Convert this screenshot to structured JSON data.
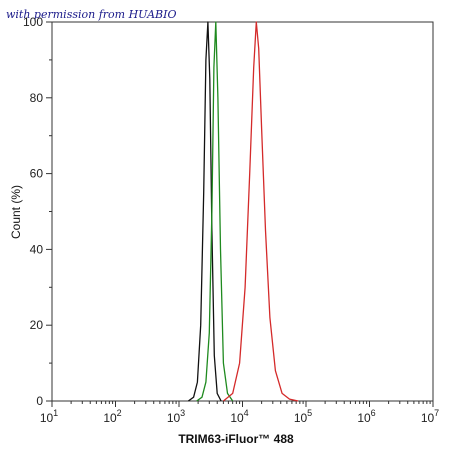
{
  "watermark": "with permission from HUABIO",
  "chart_data": {
    "type": "line",
    "xlabel": "TRIM63-iFluor™ 488",
    "ylabel": "Count  (%)",
    "x_scale": "log",
    "xlim": [
      10,
      10000000
    ],
    "ylim": [
      0,
      100
    ],
    "x_ticks": [
      {
        "value": 10,
        "base": "10",
        "exp": "1"
      },
      {
        "value": 100,
        "base": "10",
        "exp": "2"
      },
      {
        "value": 1000,
        "base": "10",
        "exp": "3"
      },
      {
        "value": 10000,
        "base": "10",
        "exp": "4"
      },
      {
        "value": 100000,
        "base": "10",
        "exp": "5"
      },
      {
        "value": 1000000,
        "base": "10",
        "exp": "6"
      },
      {
        "value": 10000000,
        "base": "10",
        "exp": "7"
      }
    ],
    "y_ticks": [
      0,
      20,
      40,
      60,
      80,
      100
    ],
    "y_tick_labels": [
      "0",
      "20",
      "40",
      "60",
      "80",
      "100"
    ],
    "grid": false,
    "series": [
      {
        "color": "#111111",
        "x": [
          1400,
          1700,
          1950,
          2200,
          2450,
          2650,
          2850,
          3050,
          3300,
          3600,
          4000,
          4600
        ],
        "y": [
          0,
          1,
          5,
          20,
          55,
          90,
          100,
          85,
          45,
          12,
          2,
          0
        ]
      },
      {
        "color": "#1f8a1f",
        "x": [
          1900,
          2300,
          2650,
          3000,
          3300,
          3550,
          3800,
          4100,
          4500,
          5000,
          5800,
          7000
        ],
        "y": [
          0,
          1,
          5,
          18,
          50,
          88,
          100,
          80,
          40,
          10,
          2,
          0
        ]
      },
      {
        "color": "#d42a2a",
        "x": [
          5000,
          7000,
          9000,
          11000,
          13000,
          15000,
          16500,
          18000,
          20000,
          23000,
          27000,
          33000,
          42000,
          55000,
          75000
        ],
        "y": [
          0,
          2,
          10,
          30,
          60,
          88,
          100,
          93,
          72,
          45,
          22,
          8,
          2,
          0.5,
          0
        ]
      }
    ]
  }
}
